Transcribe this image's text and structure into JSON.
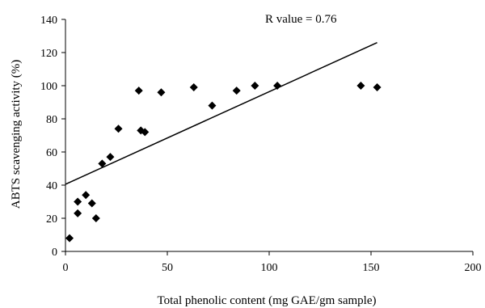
{
  "chart_data": {
    "type": "scatter",
    "title": "",
    "xlabel": "Total phenolic content (mg GAE/gm sample)",
    "ylabel": "ABTS scavenging activity (%)",
    "xlim": [
      0,
      200
    ],
    "ylim": [
      0,
      140
    ],
    "x_ticks": [
      0,
      50,
      100,
      150,
      200
    ],
    "y_ticks": [
      0,
      20,
      40,
      60,
      80,
      100,
      120,
      140
    ],
    "grid": false,
    "legend": "none",
    "annotation": "R value = 0.76",
    "marker": "diamond",
    "color": "#000000",
    "points": [
      {
        "x": 2,
        "y": 8
      },
      {
        "x": 6,
        "y": 30
      },
      {
        "x": 6,
        "y": 23
      },
      {
        "x": 10,
        "y": 34
      },
      {
        "x": 13,
        "y": 29
      },
      {
        "x": 15,
        "y": 20
      },
      {
        "x": 18,
        "y": 53
      },
      {
        "x": 22,
        "y": 57
      },
      {
        "x": 26,
        "y": 74
      },
      {
        "x": 36,
        "y": 97
      },
      {
        "x": 37,
        "y": 73
      },
      {
        "x": 39,
        "y": 72
      },
      {
        "x": 47,
        "y": 96
      },
      {
        "x": 63,
        "y": 99
      },
      {
        "x": 72,
        "y": 88
      },
      {
        "x": 84,
        "y": 97
      },
      {
        "x": 93,
        "y": 100
      },
      {
        "x": 104,
        "y": 100
      },
      {
        "x": 145,
        "y": 100
      },
      {
        "x": 153,
        "y": 99
      }
    ],
    "trendline": {
      "x": [
        0,
        153
      ],
      "y": [
        40.5,
        126
      ]
    }
  }
}
